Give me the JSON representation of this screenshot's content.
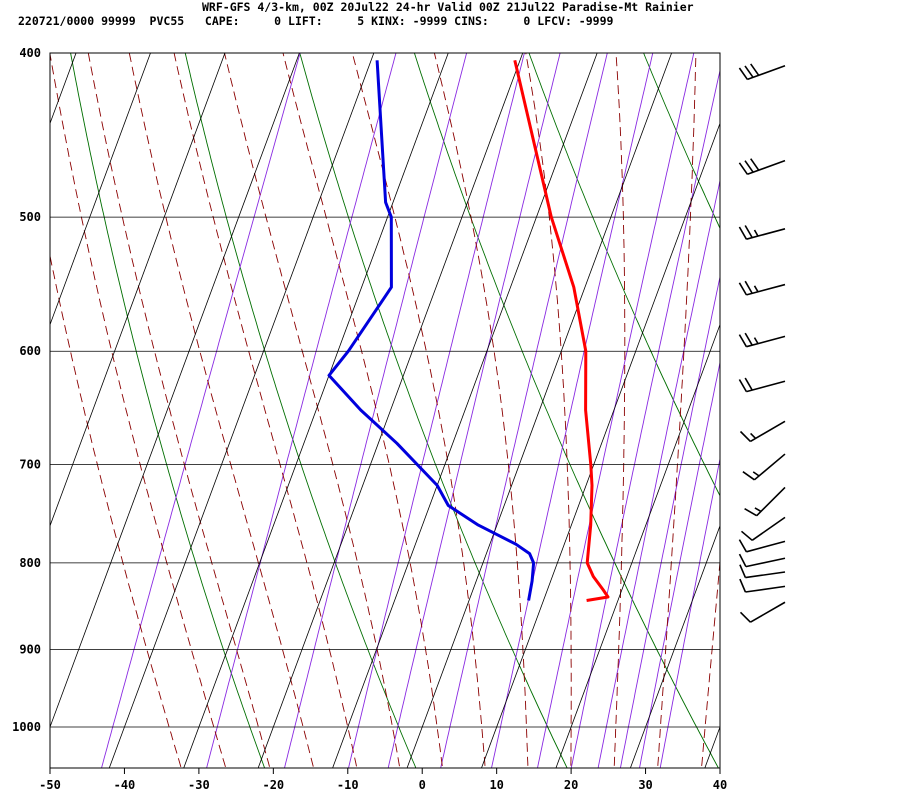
{
  "header": {
    "title": "WRF-GFS 4/3-km, 00Z 20Jul22 24-hr Valid 00Z 21Jul22 Paradise-Mt Rainier",
    "info": "220721/0000 99999  PVC55   CAPE:     0 LIFT:     5 KINX: -9999 CINS:     0 LFCV: -9999"
  },
  "colors": {
    "temperature": "#ff0000",
    "dewpoint": "#0000dd",
    "dry_adiabat": "#006e00",
    "moist_adiabat": "#8b0000",
    "mixing_ratio": "#8a2be2",
    "grid": "#000000"
  },
  "chart_data": {
    "type": "line",
    "title": "",
    "xlabel": "",
    "ylabel": "",
    "xlim": [
      -50,
      40
    ],
    "ylim": [
      1050,
      400
    ],
    "x_ticks": [
      -50,
      -40,
      -30,
      -20,
      -10,
      0,
      10,
      20,
      30,
      40
    ],
    "y_ticks": [
      400,
      500,
      600,
      700,
      800,
      900,
      1000
    ],
    "grid": true,
    "series": [
      {
        "key": "temperature",
        "points": [
          [
            842,
            15.8
          ],
          [
            838,
            18.5
          ],
          [
            830,
            17.5
          ],
          [
            815,
            15.5
          ],
          [
            800,
            14.0
          ],
          [
            760,
            12.6
          ],
          [
            720,
            10.8
          ],
          [
            700,
            9.6
          ],
          [
            650,
            6.2
          ],
          [
            600,
            3.3
          ],
          [
            550,
            -1.5
          ],
          [
            500,
            -8.0
          ],
          [
            404,
            -20.7
          ]
        ]
      },
      {
        "key": "dewpoint",
        "points": [
          [
            842,
            8.0
          ],
          [
            820,
            7.5
          ],
          [
            800,
            6.8
          ],
          [
            790,
            5.8
          ],
          [
            780,
            3.5
          ],
          [
            760,
            -2.5
          ],
          [
            740,
            -7.5
          ],
          [
            720,
            -10.0
          ],
          [
            680,
            -17.5
          ],
          [
            650,
            -24.0
          ],
          [
            620,
            -30.0
          ],
          [
            600,
            -28.6
          ],
          [
            550,
            -26.0
          ],
          [
            500,
            -29.5
          ],
          [
            490,
            -31.0
          ],
          [
            404,
            -39.2
          ]
        ]
      }
    ],
    "wind_barbs": [
      {
        "p": 407,
        "dir": 250,
        "kt": 30
      },
      {
        "p": 463,
        "dir": 250,
        "kt": 30
      },
      {
        "p": 508,
        "dir": 255,
        "kt": 25
      },
      {
        "p": 548,
        "dir": 255,
        "kt": 25
      },
      {
        "p": 588,
        "dir": 255,
        "kt": 25
      },
      {
        "p": 625,
        "dir": 255,
        "kt": 20
      },
      {
        "p": 660,
        "dir": 240,
        "kt": 15
      },
      {
        "p": 690,
        "dir": 230,
        "kt": 15
      },
      {
        "p": 722,
        "dir": 225,
        "kt": 15
      },
      {
        "p": 752,
        "dir": 235,
        "kt": 10
      },
      {
        "p": 777,
        "dir": 255,
        "kt": 10
      },
      {
        "p": 795,
        "dir": 258,
        "kt": 10
      },
      {
        "p": 810,
        "dir": 262,
        "kt": 10
      },
      {
        "p": 826,
        "dir": 262,
        "kt": 10
      },
      {
        "p": 844,
        "dir": 240,
        "kt": 10
      }
    ]
  }
}
